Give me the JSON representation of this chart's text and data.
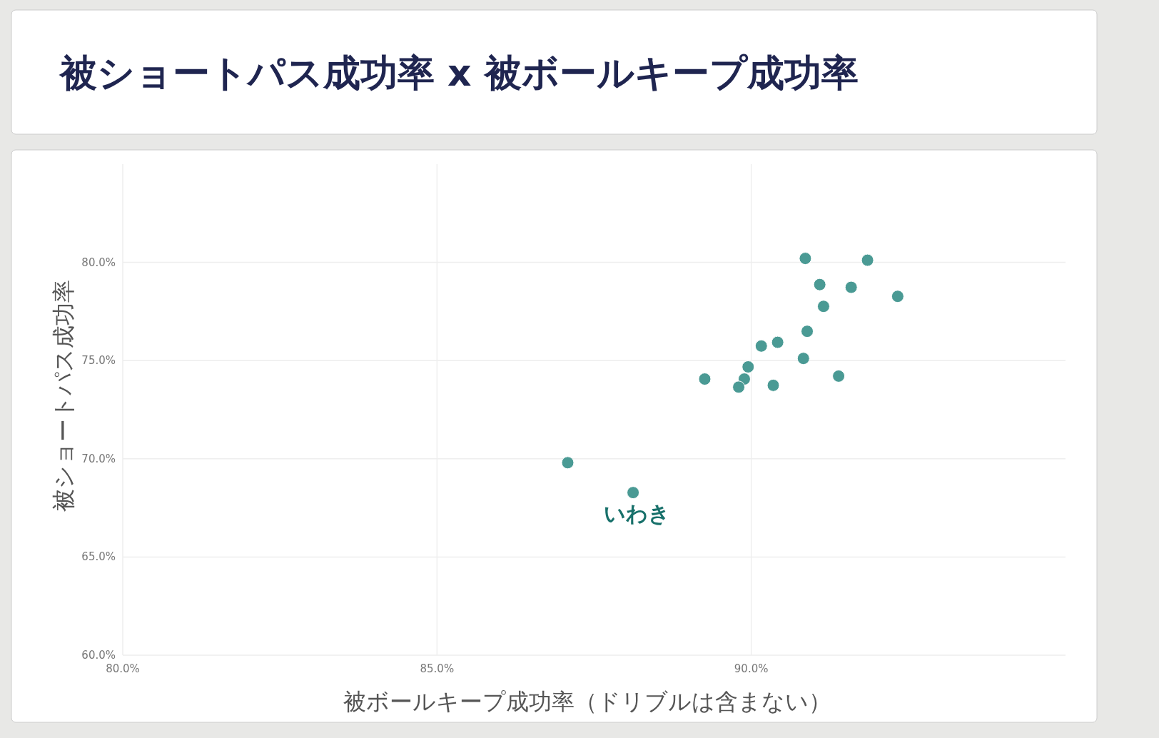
{
  "chart_data": {
    "type": "scatter",
    "title": "被ショートパス成功率 x 被ボールキープ成功率",
    "xlabel": "被ボールキープ成功率（ドリブルは含まない）",
    "ylabel": "被ショートパス成功率",
    "x": [
      90.86,
      91.85,
      91.09,
      91.59,
      92.33,
      91.15,
      90.89,
      90.16,
      90.42,
      90.83,
      89.95,
      89.26,
      89.89,
      89.8,
      90.35,
      91.39,
      87.08,
      88.12
    ],
    "values": [
      80.2,
      80.11,
      78.87,
      78.73,
      78.27,
      77.76,
      76.49,
      75.74,
      75.93,
      75.11,
      74.68,
      74.06,
      74.06,
      73.65,
      73.74,
      74.21,
      69.8,
      68.28
    ],
    "color": "#4a9a94",
    "marker": "circle",
    "grid": true,
    "xlim": [
      80,
      95
    ],
    "ylim": [
      60,
      85
    ],
    "xticks": [
      {
        "value": 80,
        "label": "80.0%"
      },
      {
        "value": 85,
        "label": "85.0%"
      },
      {
        "value": 90,
        "label": "90.0%"
      }
    ],
    "yticks": [
      {
        "value": 60,
        "label": "60.0%"
      },
      {
        "value": 65,
        "label": "65.0%"
      },
      {
        "value": 70,
        "label": "70.0%"
      },
      {
        "value": 75,
        "label": "75.0%"
      },
      {
        "value": 80,
        "label": "80.0%"
      }
    ],
    "annotations": [
      {
        "text": "いわき",
        "x": 88.12,
        "y": 68.28
      }
    ]
  }
}
